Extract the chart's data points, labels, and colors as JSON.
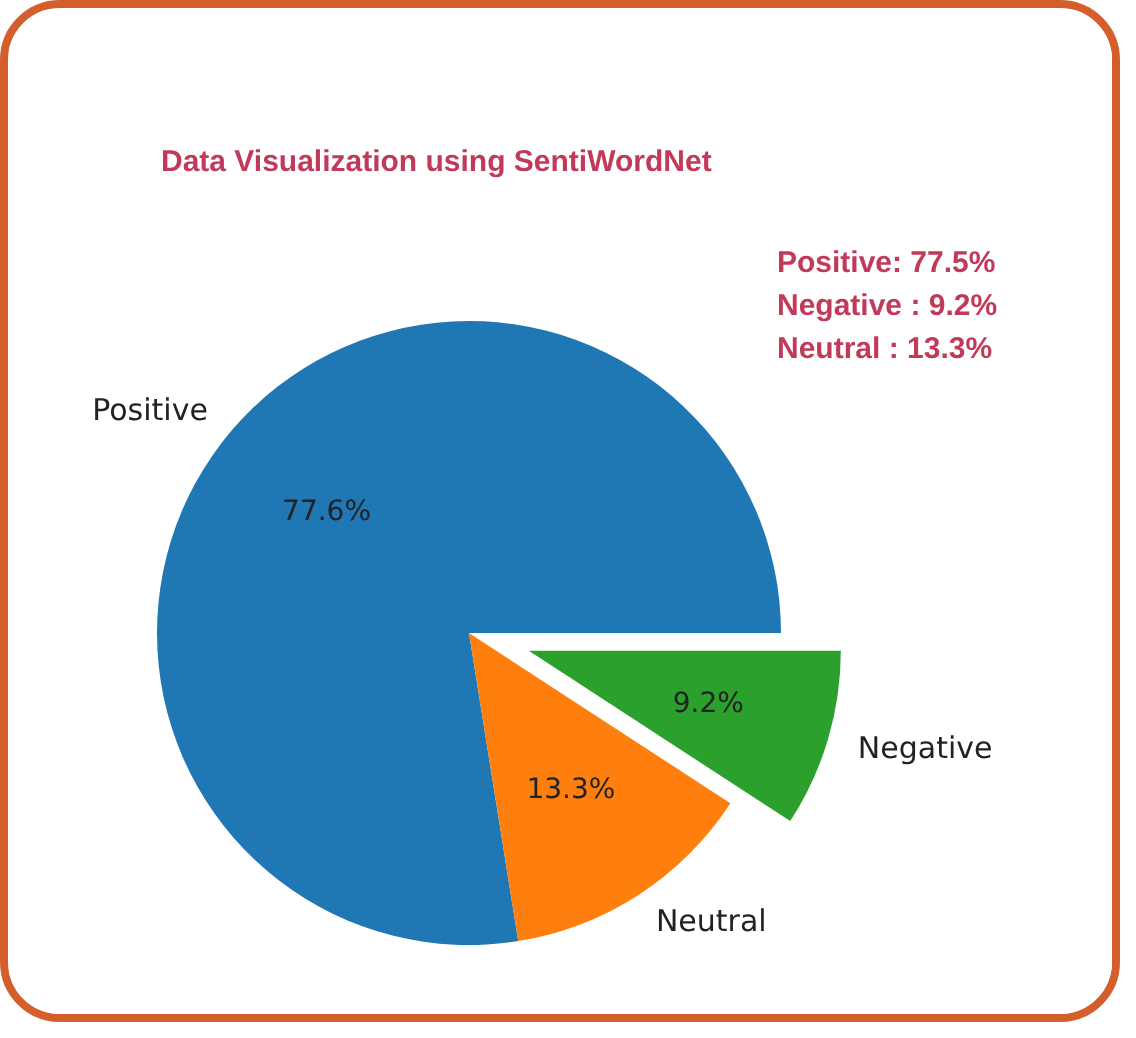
{
  "chart_data": {
    "type": "pie",
    "title": "Data Visualization using SentiWordNet",
    "categories": [
      "Positive",
      "Neutral",
      "Negative"
    ],
    "values": [
      77.6,
      13.3,
      9.2
    ],
    "colors": [
      "#1f77b4",
      "#ff7f0e",
      "#2ca02c"
    ],
    "value_labels": [
      "77.6%",
      "13.3%",
      "9.2%"
    ],
    "annotations": [
      "Positive: 77.5%",
      "Negative : 9.2%",
      "Neutral  : 13.3%"
    ]
  }
}
